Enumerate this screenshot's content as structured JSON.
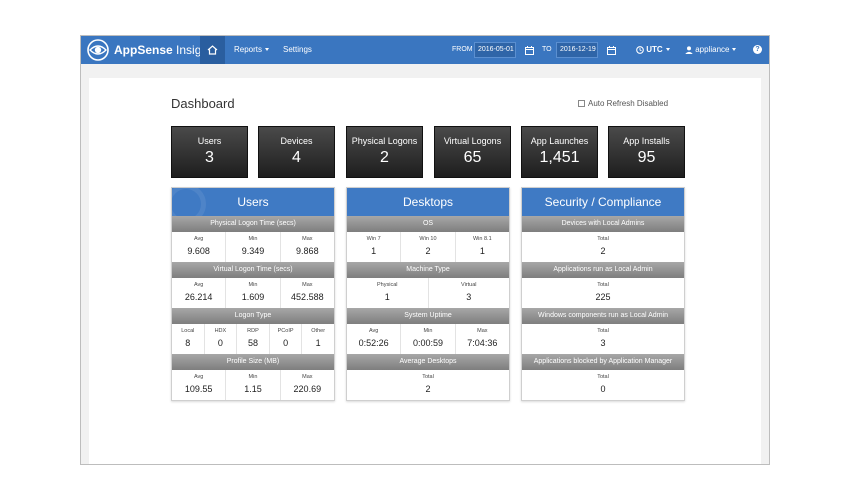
{
  "app": {
    "brand_bold": "AppSense",
    "brand_rest": " Insight",
    "logo_icon": "eye-logo-icon"
  },
  "nav": {
    "home_icon": "home-icon",
    "reports_label": "Reports",
    "settings_label": "Settings",
    "from_label": "FROM",
    "from_value": "2016-05-01",
    "to_label": "TO",
    "to_value": "2016-12-19",
    "timezone_label": "UTC",
    "user_label": "appliance",
    "help_label": "?"
  },
  "page": {
    "title": "Dashboard",
    "auto_refresh_label": "Auto Refresh Disabled"
  },
  "tiles": [
    {
      "label": "Users",
      "value": "3"
    },
    {
      "label": "Devices",
      "value": "4"
    },
    {
      "label": "Physical Logons",
      "value": "2"
    },
    {
      "label": "Virtual Logons",
      "value": "65"
    },
    {
      "label": "App Launches",
      "value": "1,451"
    },
    {
      "label": "App Installs",
      "value": "95"
    }
  ],
  "panels": [
    {
      "title": "Users",
      "sections": [
        {
          "header": "Physical Logon Time (secs)",
          "cells": [
            {
              "label": "Avg",
              "value": "9.608"
            },
            {
              "label": "Min",
              "value": "9.349"
            },
            {
              "label": "Max",
              "value": "9.868"
            }
          ]
        },
        {
          "header": "Virtual Logon Time (secs)",
          "cells": [
            {
              "label": "Avg",
              "value": "26.214"
            },
            {
              "label": "Min",
              "value": "1.609"
            },
            {
              "label": "Max",
              "value": "452.588"
            }
          ]
        },
        {
          "header": "Logon Type",
          "cells": [
            {
              "label": "Local",
              "value": "8"
            },
            {
              "label": "HDX",
              "value": "0"
            },
            {
              "label": "RDP",
              "value": "58"
            },
            {
              "label": "PCoIP",
              "value": "0"
            },
            {
              "label": "Other",
              "value": "1"
            }
          ]
        },
        {
          "header": "Profile Size (MB)",
          "cells": [
            {
              "label": "Avg",
              "value": "109.55"
            },
            {
              "label": "Min",
              "value": "1.15"
            },
            {
              "label": "Max",
              "value": "220.69"
            }
          ]
        }
      ]
    },
    {
      "title": "Desktops",
      "sections": [
        {
          "header": "OS",
          "cells": [
            {
              "label": "Win 7",
              "value": "1"
            },
            {
              "label": "Win 10",
              "value": "2"
            },
            {
              "label": "Win 8.1",
              "value": "1"
            }
          ]
        },
        {
          "header": "Machine Type",
          "cells": [
            {
              "label": "Physical",
              "value": "1"
            },
            {
              "label": "Virtual",
              "value": "3"
            }
          ]
        },
        {
          "header": "System Uptime",
          "cells": [
            {
              "label": "Avg",
              "value": "0:52:26"
            },
            {
              "label": "Min",
              "value": "0:00:59"
            },
            {
              "label": "Max",
              "value": "7:04:36"
            }
          ]
        },
        {
          "header": "Average Desktops",
          "cells": [
            {
              "label": "Total",
              "value": "2"
            }
          ]
        }
      ]
    },
    {
      "title": "Security / Compliance",
      "sections": [
        {
          "header": "Devices with Local Admins",
          "cells": [
            {
              "label": "Total",
              "value": "2"
            }
          ]
        },
        {
          "header": "Applications run as Local Admin",
          "cells": [
            {
              "label": "Total",
              "value": "225"
            }
          ]
        },
        {
          "header": "Windows components run as Local Admin",
          "cells": [
            {
              "label": "Total",
              "value": "3"
            }
          ]
        },
        {
          "header": "Applications blocked by Application Manager",
          "cells": [
            {
              "label": "Total",
              "value": "0"
            }
          ]
        }
      ]
    }
  ]
}
